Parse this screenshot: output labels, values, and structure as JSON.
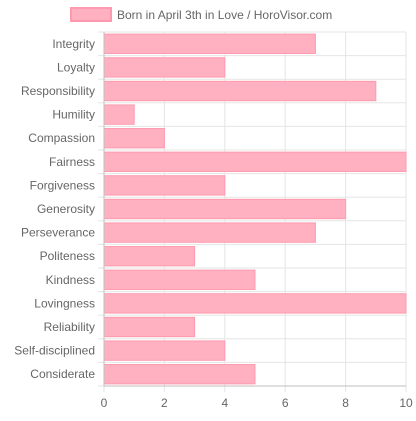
{
  "chart_data": {
    "type": "bar",
    "orientation": "horizontal",
    "categories": [
      "Integrity",
      "Loyalty",
      "Responsibility",
      "Humility",
      "Compassion",
      "Fairness",
      "Forgiveness",
      "Generosity",
      "Perseverance",
      "Politeness",
      "Kindness",
      "Lovingness",
      "Reliability",
      "Self-disciplined",
      "Considerate"
    ],
    "series": [
      {
        "name": "Born in April 3th in Love / HoroVisor.com",
        "values": [
          7,
          4,
          9,
          1,
          2,
          10,
          4,
          8,
          7,
          3,
          5,
          10,
          3,
          4,
          5
        ],
        "color": "#ffb1c1",
        "border_color": "#ff9aae"
      }
    ],
    "xlim": [
      0,
      10
    ],
    "xticks": [
      "0",
      "2",
      "4",
      "6",
      "8",
      "10"
    ],
    "grid": true,
    "grid_color": "#e5e5e5",
    "axis_color": "#bfbfbf",
    "text_color": "#666666",
    "legend_position": "top"
  }
}
